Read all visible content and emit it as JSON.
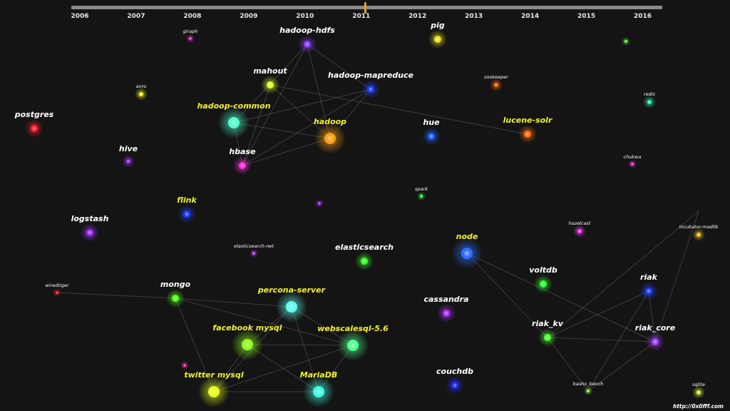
{
  "timeline": {
    "years": [
      "2006",
      "2007",
      "2008",
      "2009",
      "2010",
      "2011",
      "2012",
      "2013",
      "2014",
      "2015",
      "2016"
    ],
    "range": [
      2006,
      2016.5
    ],
    "current": 2011.2
  },
  "credit": "http://0x0fff.com",
  "nodes": [
    {
      "id": "hadoop-hdfs",
      "label": "hadoop-hdfs",
      "color": "#8a3cff",
      "size": "md",
      "label_style": "white"
    },
    {
      "id": "giraph",
      "label": "giraph",
      "color": "#ff30d0",
      "size": "xs",
      "label_style": "small"
    },
    {
      "id": "pig",
      "label": "pig",
      "color": "#e8e020",
      "size": "md",
      "label_style": "white"
    },
    {
      "id": "avro",
      "label": "avro",
      "color": "#f0f020",
      "size": "sm",
      "label_style": "small"
    },
    {
      "id": "mahout",
      "label": "mahout",
      "color": "#d8ff30",
      "size": "md",
      "label_style": "white"
    },
    {
      "id": "hadoop-mapreduce",
      "label": "hadoop-mapreduce",
      "color": "#2040ff",
      "size": "md",
      "label_style": "white"
    },
    {
      "id": "zookeeper",
      "label": "zookeeper",
      "color": "#ff6a10",
      "size": "sm",
      "label_style": "small"
    },
    {
      "id": "redis",
      "label": "redis",
      "color": "#30f0a0",
      "size": "sm",
      "label_style": "small"
    },
    {
      "id": "postgres",
      "label": "postgres",
      "color": "#ff2030",
      "size": "md",
      "label_style": "white"
    },
    {
      "id": "hadoop-common",
      "label": "hadoop-common",
      "color": "#50ffd0",
      "size": "lg",
      "label_style": "yellow"
    },
    {
      "id": "hadoop",
      "label": "hadoop",
      "color": "#ffa010",
      "size": "lg",
      "label_style": "yellow"
    },
    {
      "id": "hue",
      "label": "hue",
      "color": "#2060ff",
      "size": "md",
      "label_style": "white"
    },
    {
      "id": "lucene-solr",
      "label": "lucene-solr",
      "color": "#ff7010",
      "size": "md",
      "label_style": "yellow"
    },
    {
      "id": "hive",
      "label": "hive",
      "color": "#a030ff",
      "size": "sm",
      "label_style": "white"
    },
    {
      "id": "hbase",
      "label": "hbase",
      "color": "#ff30e0",
      "size": "md",
      "label_style": "white"
    },
    {
      "id": "chukwa",
      "label": "chukwa",
      "color": "#ff30ff",
      "size": "xs",
      "label_style": "small"
    },
    {
      "id": "spark",
      "label": "spark",
      "color": "#30ff50",
      "size": "xs",
      "label_style": "small"
    },
    {
      "id": "flink",
      "label": "flink",
      "color": "#2040ff",
      "size": "md",
      "label_style": "yellow"
    },
    {
      "id": "logstash",
      "label": "logstash",
      "color": "#a030ff",
      "size": "md",
      "label_style": "white"
    },
    {
      "id": "hazelcast",
      "label": "hazelcast",
      "color": "#ff40ff",
      "size": "sm",
      "label_style": "small"
    },
    {
      "id": "incubator-madlib",
      "label": "incubator-madlib",
      "color": "#ffc010",
      "size": "sm",
      "label_style": "small"
    },
    {
      "id": "elasticsearch-net",
      "label": "elasticsearch-net",
      "color": "#d040ff",
      "size": "xs",
      "label_style": "small"
    },
    {
      "id": "node",
      "label": "node",
      "color": "#3070ff",
      "size": "lg",
      "label_style": "yellow"
    },
    {
      "id": "elasticsearch",
      "label": "elasticsearch",
      "color": "#40ff30",
      "size": "md",
      "label_style": "white"
    },
    {
      "id": "wiredtiger",
      "label": "wiredtiger",
      "color": "#ff2020",
      "size": "xs",
      "label_style": "small"
    },
    {
      "id": "voltdb",
      "label": "voltdb",
      "color": "#30ff30",
      "size": "md",
      "label_style": "white"
    },
    {
      "id": "riak",
      "label": "riak",
      "color": "#2040ff",
      "size": "md",
      "label_style": "white"
    },
    {
      "id": "mongo",
      "label": "mongo",
      "color": "#50ff20",
      "size": "md",
      "label_style": "white"
    },
    {
      "id": "percona-server",
      "label": "percona-server",
      "color": "#60fff0",
      "size": "lg",
      "label_style": "yellow"
    },
    {
      "id": "cassandra",
      "label": "cassandra",
      "color": "#b030ff",
      "size": "md",
      "label_style": "white"
    },
    {
      "id": "riak_kv",
      "label": "riak_kv",
      "color": "#50ff30",
      "size": "md",
      "label_style": "white"
    },
    {
      "id": "riak_core",
      "label": "riak_core",
      "color": "#a040ff",
      "size": "md",
      "label_style": "white"
    },
    {
      "id": "facebook-mysql",
      "label": "facebook mysql",
      "color": "#90ff20",
      "size": "lg",
      "label_style": "yellow"
    },
    {
      "id": "webscalesql",
      "label": "webscalesql-5.6",
      "color": "#50ff90",
      "size": "lg",
      "label_style": "yellow"
    },
    {
      "id": "couchdb",
      "label": "couchdb",
      "color": "#2030ff",
      "size": "md",
      "label_style": "white"
    },
    {
      "id": "twitter-mysql",
      "label": "twitter mysql",
      "color": "#e8ff20",
      "size": "lg",
      "label_style": "yellow"
    },
    {
      "id": "mariadb",
      "label": "MariaDB",
      "color": "#40ffe0",
      "size": "lg",
      "label_style": "yellow"
    },
    {
      "id": "basho_bench",
      "label": "basho_bench",
      "color": "#90ff30",
      "size": "xs",
      "label_style": "small"
    },
    {
      "id": "sqlite",
      "label": "sqlite",
      "color": "#d0ff30",
      "size": "sm",
      "label_style": "small"
    },
    {
      "id": "unlabeled-green-dot",
      "label": "",
      "color": "#50ff30",
      "size": "xs",
      "label_style": "small"
    },
    {
      "id": "unlabeled-purple-dot",
      "label": "",
      "color": "#b030ff",
      "size": "xs",
      "label_style": "small"
    },
    {
      "id": "unlabeled-magenta-dot",
      "label": "",
      "color": "#ff30b0",
      "size": "xs",
      "label_style": "small"
    }
  ],
  "edges": [
    [
      "hadoop-hdfs",
      "hadoop-common"
    ],
    [
      "hadoop-hdfs",
      "hadoop"
    ],
    [
      "hadoop-hdfs",
      "hadoop-mapreduce"
    ],
    [
      "hadoop-hdfs",
      "hbase"
    ],
    [
      "mahout",
      "hadoop"
    ],
    [
      "mahout",
      "lucene-solr"
    ],
    [
      "mahout",
      "hbase"
    ],
    [
      "hadoop-mapreduce",
      "hadoop-common"
    ],
    [
      "hadoop-mapreduce",
      "hbase"
    ],
    [
      "hadoop-mapreduce",
      "hadoop"
    ],
    [
      "hadoop-common",
      "hadoop"
    ],
    [
      "hadoop-common",
      "hbase"
    ],
    [
      "hadoop",
      "hbase"
    ],
    [
      "wiredtiger",
      "mongo"
    ],
    [
      "mongo",
      "percona-server"
    ],
    [
      "mongo",
      "webscalesql"
    ],
    [
      "mongo",
      "twitter-mysql"
    ],
    [
      "percona-server",
      "facebook-mysql"
    ],
    [
      "percona-server",
      "webscalesql"
    ],
    [
      "percona-server",
      "mariadb"
    ],
    [
      "percona-server",
      "twitter-mysql"
    ],
    [
      "facebook-mysql",
      "webscalesql"
    ],
    [
      "facebook-mysql",
      "twitter-mysql"
    ],
    [
      "facebook-mysql",
      "mariadb"
    ],
    [
      "webscalesql",
      "twitter-mysql"
    ],
    [
      "webscalesql",
      "mariadb"
    ],
    [
      "twitter-mysql",
      "mariadb"
    ],
    [
      "node",
      "riak_kv"
    ],
    [
      "node",
      "riak_core"
    ],
    [
      "riak",
      "riak_kv"
    ],
    [
      "riak",
      "riak_core"
    ],
    [
      "riak",
      "basho_bench"
    ],
    [
      "riak_kv",
      "riak_core"
    ],
    [
      "riak_kv",
      "basho_bench"
    ],
    [
      "riak_core",
      "basho_bench"
    ],
    [
      "riak_kv",
      "incubator-madlib"
    ],
    [
      "riak_core",
      "incubator-madlib"
    ]
  ]
}
